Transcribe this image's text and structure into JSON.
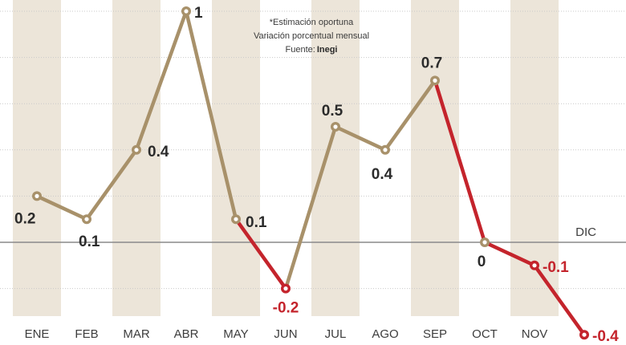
{
  "chart_data": {
    "type": "line",
    "categories": [
      "ENE",
      "FEB",
      "MAR",
      "ABR",
      "MAY",
      "JUN",
      "JUL",
      "AGO",
      "SEP",
      "OCT",
      "NOV",
      "DIC"
    ],
    "values": [
      0.2,
      0.1,
      0.4,
      1,
      0.1,
      -0.2,
      0.5,
      0.4,
      0.7,
      0,
      -0.1,
      -0.4
    ],
    "value_labels": [
      "0.2",
      "0.1",
      "0.4",
      "1",
      "0.1",
      "-0.2",
      "0.5",
      "0.4",
      "0.7",
      "0",
      "-0.1",
      "-0.4"
    ],
    "ylim": [
      -0.4,
      1.05
    ],
    "grid": true,
    "zero_line_label": "DIC",
    "notes": {
      "line1": "*Estimación oportuna",
      "line2": "Variación porcentual mensual",
      "source_prefix": "Fuente:",
      "source_name": "Inegi"
    },
    "colors": {
      "positive": "#a8916a",
      "negative": "#c4242c",
      "band": "#ece5d9",
      "grid": "#c9c9c9",
      "zero_line": "#8a8a8a",
      "positive_label": "#2b2b2b"
    }
  }
}
